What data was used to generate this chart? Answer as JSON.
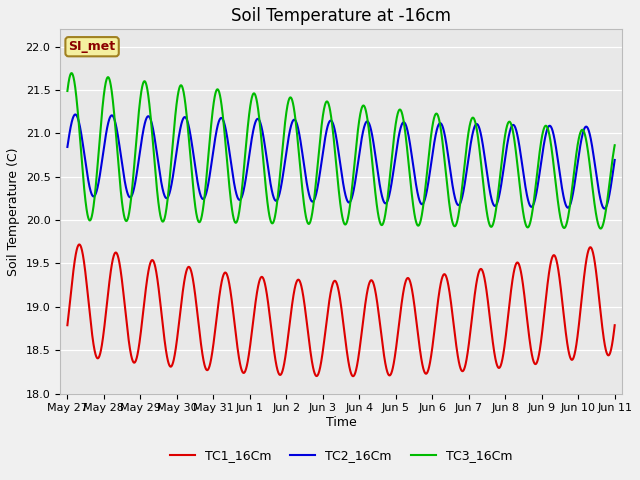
{
  "title": "Soil Temperature at -16cm",
  "xlabel": "Time",
  "ylabel": "Soil Temperature (C)",
  "ylim": [
    18.0,
    22.2
  ],
  "annotation": "SI_met",
  "bg_color": "#e8e8e8",
  "fig_color": "#f0f0f0",
  "grid_color": "#ffffff",
  "legend_labels": [
    "TC1_16Cm",
    "TC2_16Cm",
    "TC3_16Cm"
  ],
  "legend_colors": [
    "#dd0000",
    "#0000dd",
    "#00bb00"
  ],
  "x_tick_labels": [
    "May 27",
    "May 28",
    "May 29",
    "May 30",
    "May 31",
    "Jun 1",
    "Jun 2",
    "Jun 3",
    "Jun 4",
    "Jun 5",
    "Jun 6",
    "Jun 7",
    "Jun 8",
    "Jun 9",
    "Jun 10",
    "Jun 11"
  ],
  "x_tick_positions": [
    0,
    1,
    2,
    3,
    4,
    5,
    6,
    7,
    8,
    9,
    10,
    11,
    12,
    13,
    14,
    15
  ],
  "yticks": [
    18.0,
    18.5,
    19.0,
    19.5,
    20.0,
    20.5,
    21.0,
    21.5,
    22.0
  ],
  "title_fontsize": 12,
  "axis_label_fontsize": 9,
  "tick_fontsize": 8,
  "legend_fontsize": 9,
  "line_width": 1.5
}
